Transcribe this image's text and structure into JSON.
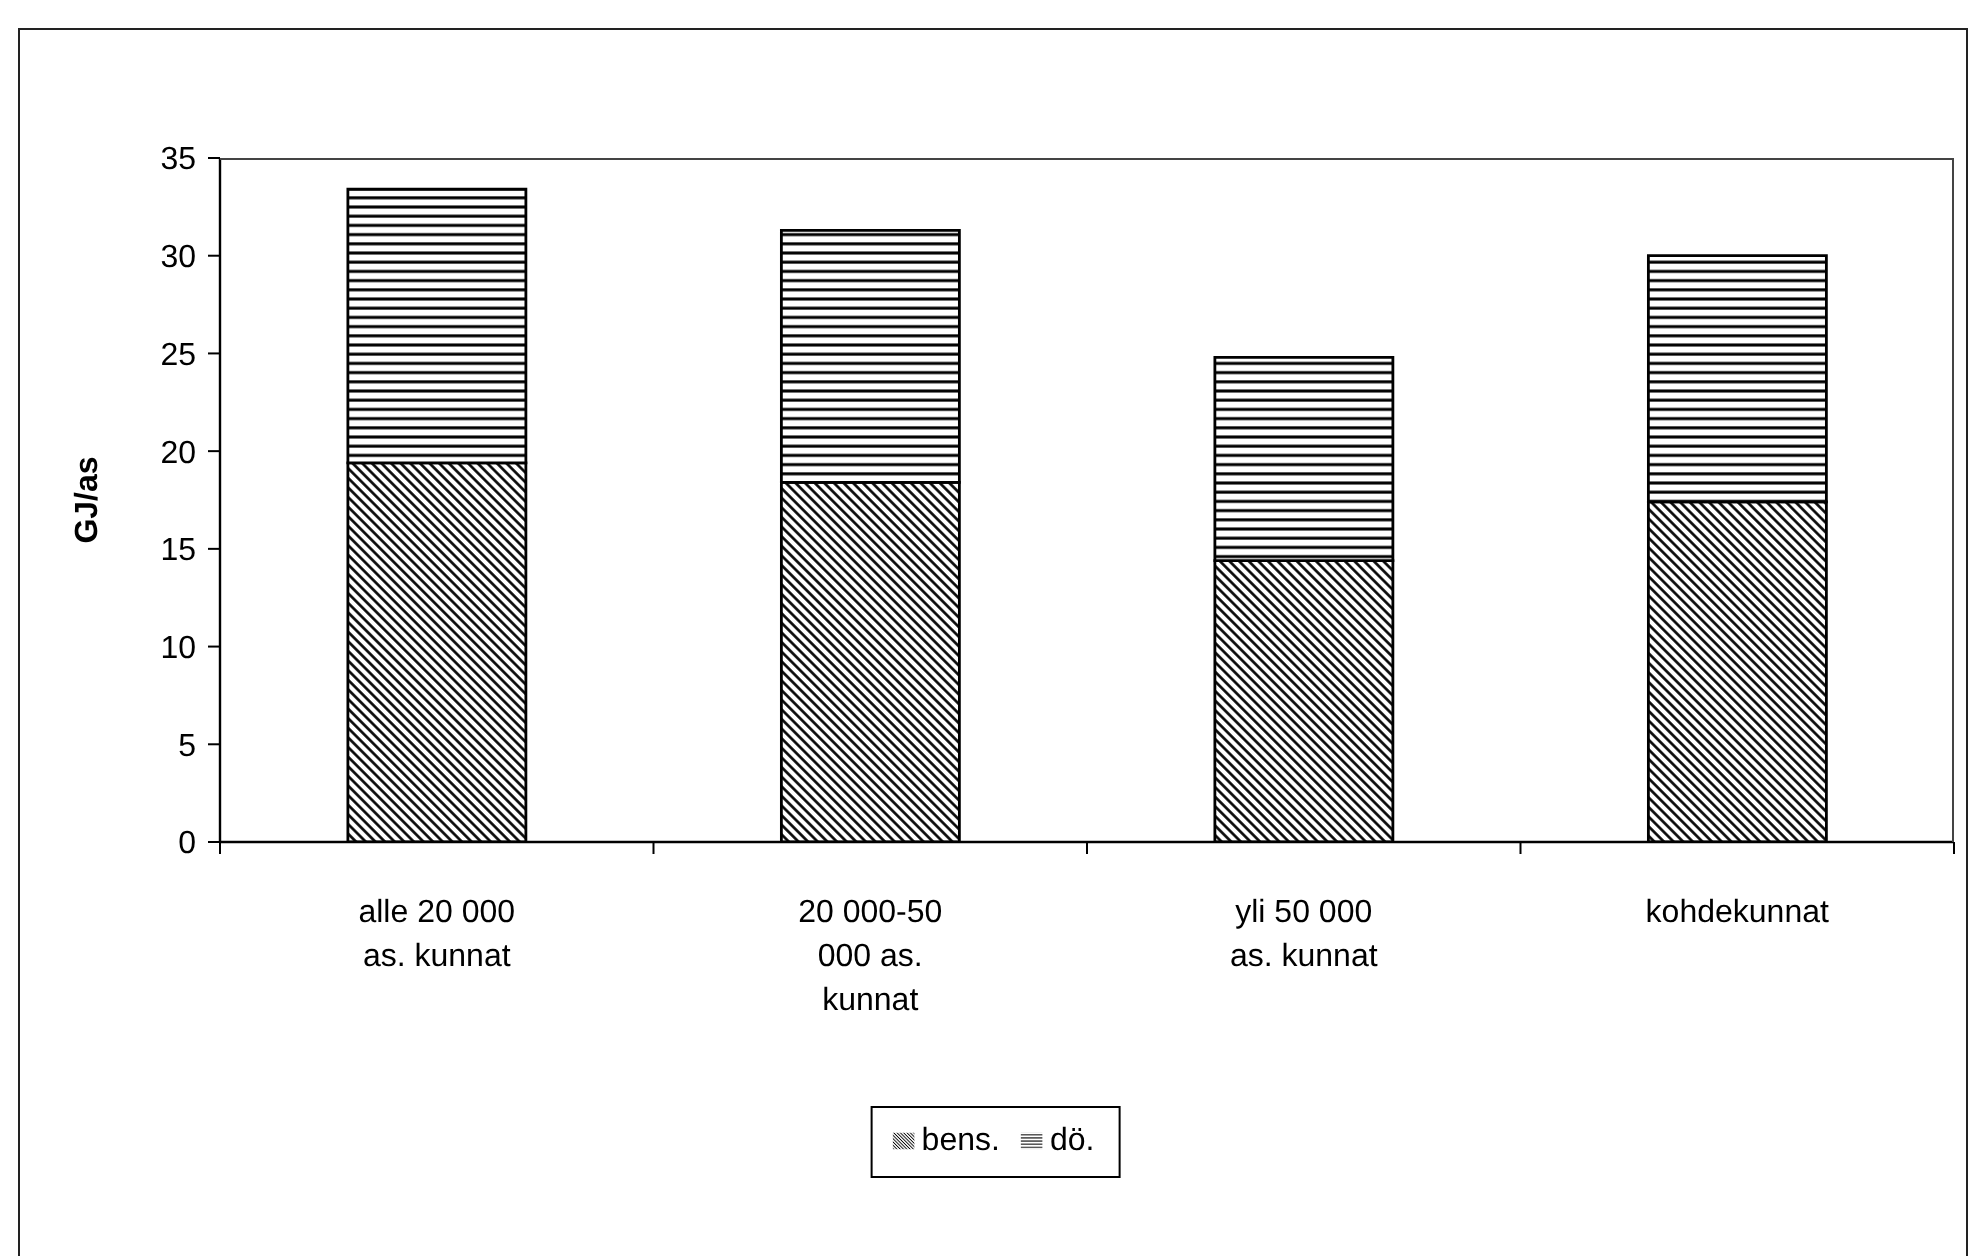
{
  "chart_data": {
    "type": "bar",
    "ylabel": "GJ/as",
    "categories": [
      "alle 20 000 as. kunnat",
      "20 000-50 000 as. kunnat",
      "yli 50 000 as. kunnat",
      "kohdekunnat"
    ],
    "series": [
      {
        "name": "bens.",
        "color": "#000000",
        "values": [
          19.4,
          18.4,
          14.4,
          17.4
        ]
      },
      {
        "name": "dö.",
        "color": "#000000",
        "values": [
          14.0,
          12.9,
          10.4,
          12.6
        ]
      }
    ],
    "stacked": true,
    "ylim": [
      0,
      35
    ],
    "yticks": [
      0,
      5,
      10,
      15,
      20,
      25,
      30,
      35
    ],
    "legend": "bottom"
  }
}
